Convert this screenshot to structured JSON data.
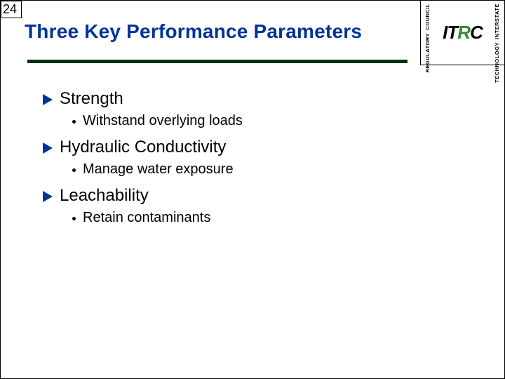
{
  "slide_number": "24",
  "title": "Three Key Performance Parameters",
  "colors": {
    "title": "#003399",
    "underline": "#003300",
    "bullet_arrow": "#003399",
    "text": "#000000",
    "background": "#ffffff",
    "logo_green": "#2e8b3d"
  },
  "logo": {
    "left_top": "COUNCIL",
    "left_bottom": "REGULATORY",
    "right_top": "INTERSTATE",
    "right_bottom": "TECHNOLOGY",
    "center_letters": [
      "I",
      "T",
      "R",
      "C"
    ],
    "center_green_index": 2
  },
  "bullets": [
    {
      "text": "Strength",
      "sub": [
        {
          "text": "Withstand overlying loads"
        }
      ]
    },
    {
      "text": "Hydraulic Conductivity",
      "sub": [
        {
          "text": "Manage water exposure"
        }
      ]
    },
    {
      "text": "Leachability",
      "sub": [
        {
          "text": "Retain contaminants"
        }
      ]
    }
  ]
}
